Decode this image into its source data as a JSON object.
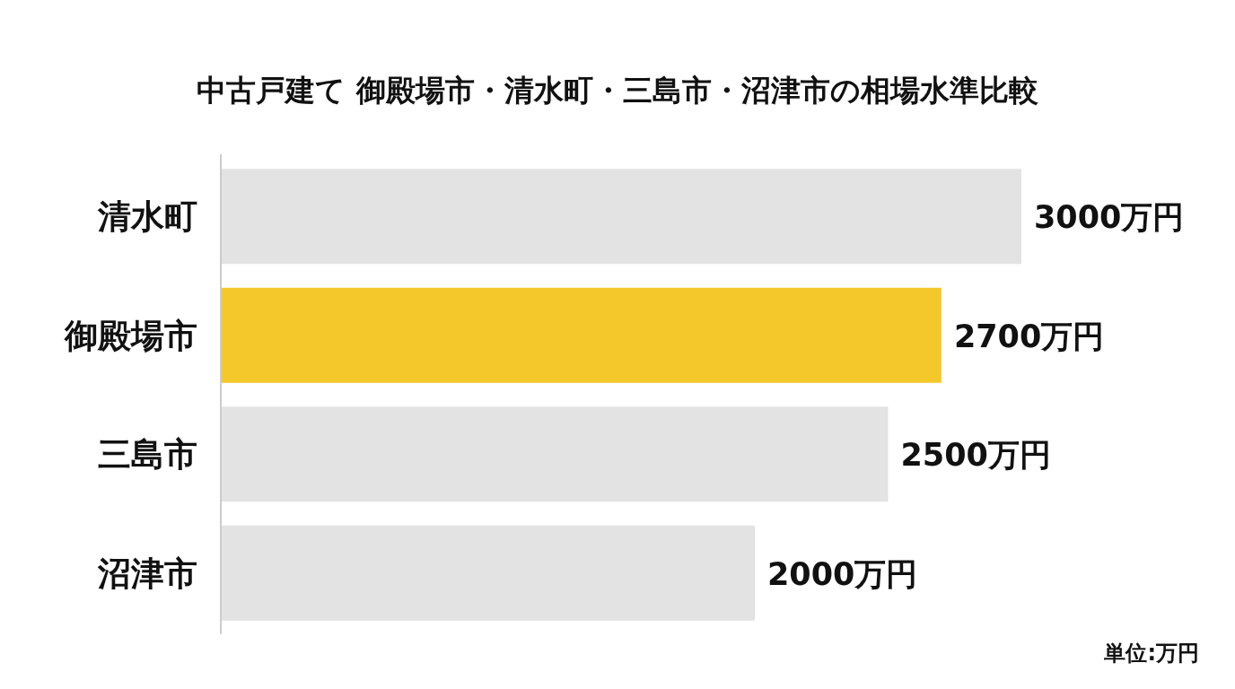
{
  "chart_data": {
    "type": "bar",
    "orientation": "horizontal",
    "title": "中古戸建て 御殿場市・清水町・三島市・沼津市の相場水準比較",
    "categories": [
      "清水町",
      "御殿場市",
      "三島市",
      "沼津市"
    ],
    "values": [
      3000,
      2700,
      2500,
      2000
    ],
    "colors": [
      "#e3e3e3",
      "#f4c82a",
      "#e3e3e3",
      "#e3e3e3"
    ],
    "value_labels": [
      "3000万円",
      "2700万円",
      "2500万円",
      "2000万円"
    ],
    "annotations": [
      "単位:万円"
    ]
  }
}
